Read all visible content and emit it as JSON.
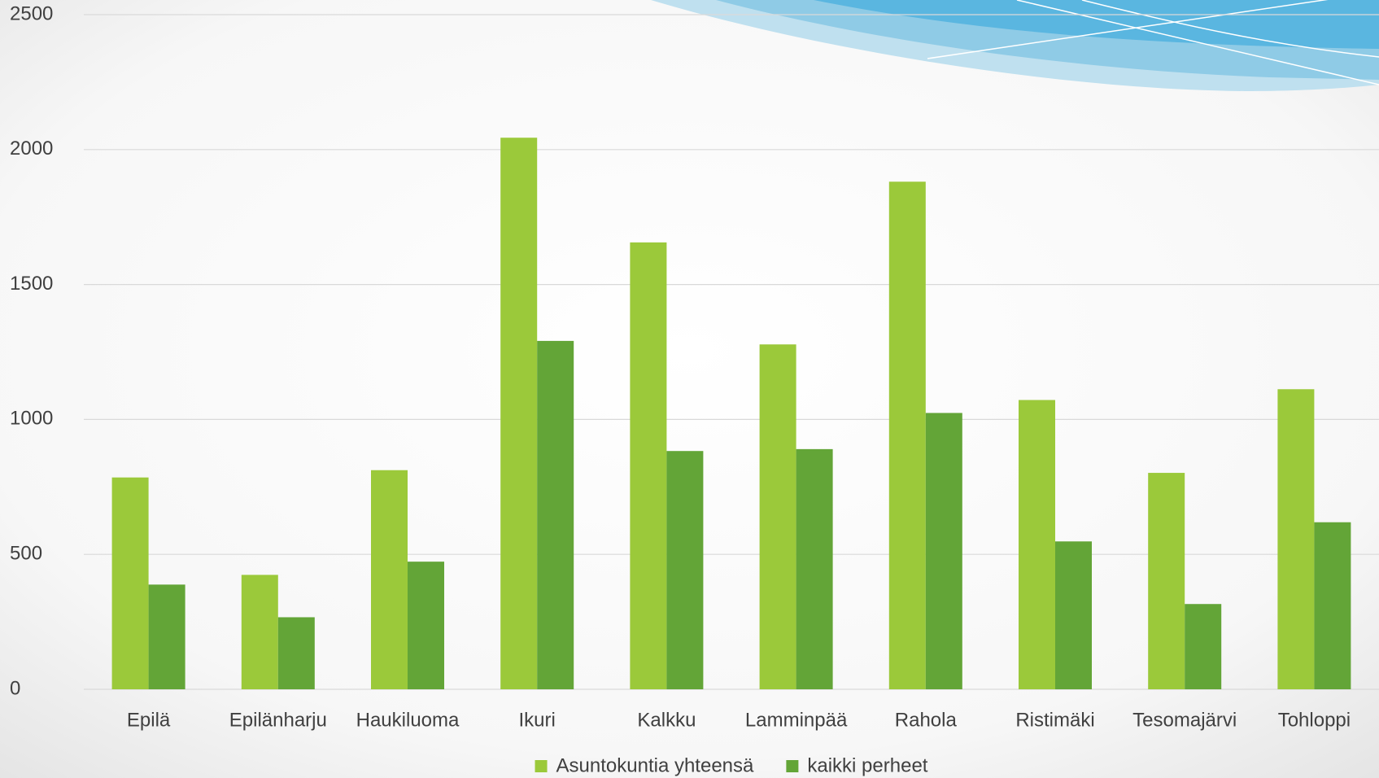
{
  "chart_data": {
    "type": "bar",
    "categories": [
      "Epilä",
      "Epilänharju",
      "Haukiluoma",
      "Ikuri",
      "Kalkku",
      "Lamminpää",
      "Rahola",
      "Ristimäki",
      "Tesomajärvi",
      "Tohloppi"
    ],
    "series": [
      {
        "name": "Asuntokuntia yhteensä",
        "color": "#9bc93a",
        "values": [
          785,
          424,
          812,
          2044,
          1656,
          1278,
          1881,
          1072,
          802,
          1112
        ]
      },
      {
        "name": "kaikki perheet",
        "color": "#63a537",
        "values": [
          388,
          267,
          473,
          1291,
          883,
          890,
          1024,
          548,
          316,
          619
        ]
      }
    ],
    "ylim": [
      0,
      2500
    ],
    "yticks": [
      0,
      500,
      1000,
      1500,
      2000,
      2500
    ],
    "grid": true,
    "legend": "bottom"
  }
}
